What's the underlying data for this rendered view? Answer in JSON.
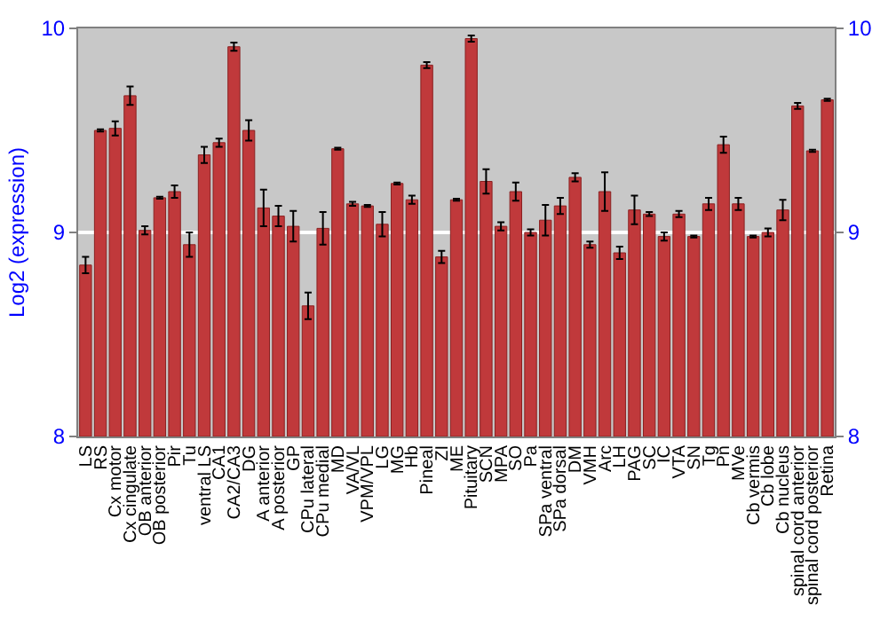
{
  "chart_data": {
    "type": "bar",
    "ylabel": "Log2 (expression)",
    "categories": [
      "LS",
      "RS",
      "Cx motor",
      "Cx cingulate",
      "OB anterior",
      "OB posterior",
      "Pir",
      "Tu",
      "ventral LS",
      "CA1",
      "CA2/CA3",
      "DG",
      "A anterior",
      "A posterior",
      "GP",
      "CPu lateral",
      "CPu medial",
      "MD",
      "VA/VL",
      "VPM/VPL",
      "LG",
      "MG",
      "Hb",
      "Pineal",
      "ZI",
      "ME",
      "Pituitary",
      "SCN",
      "MPA",
      "SO",
      "Pa",
      "SPa ventral",
      "SPa dorsal",
      "DM",
      "VMH",
      "Arc",
      "LH",
      "PAG",
      "SC",
      "IC",
      "VTA",
      "SN",
      "Tg",
      "Pn",
      "MVe",
      "Cb vermis",
      "Cb lobe",
      "Cb nucleus",
      "spinal cord anterior",
      "spinal cord posterior",
      "Retina"
    ],
    "values": [
      8.84,
      9.5,
      9.51,
      9.67,
      9.01,
      9.17,
      9.2,
      8.94,
      9.38,
      9.44,
      9.91,
      9.5,
      9.12,
      9.08,
      9.03,
      8.64,
      9.02,
      9.41,
      9.14,
      9.13,
      9.04,
      9.24,
      9.16,
      9.82,
      8.88,
      9.16,
      9.95,
      9.25,
      9.03,
      9.2,
      9.0,
      9.06,
      9.13,
      9.27,
      8.94,
      9.2,
      8.9,
      9.11,
      9.09,
      8.98,
      9.09,
      8.98,
      9.14,
      9.43,
      9.14,
      8.98,
      9.0,
      9.11,
      9.62,
      9.4,
      9.65
    ],
    "errors": [
      0.04,
      0.005,
      0.035,
      0.045,
      0.02,
      0.005,
      0.03,
      0.06,
      0.04,
      0.02,
      0.02,
      0.05,
      0.09,
      0.05,
      0.075,
      0.065,
      0.08,
      0.005,
      0.01,
      0.005,
      0.06,
      0.005,
      0.02,
      0.015,
      0.03,
      0.005,
      0.015,
      0.06,
      0.02,
      0.045,
      0.015,
      0.075,
      0.04,
      0.02,
      0.015,
      0.095,
      0.03,
      0.07,
      0.01,
      0.02,
      0.015,
      0.005,
      0.03,
      0.04,
      0.03,
      0.005,
      0.02,
      0.05,
      0.015,
      0.005,
      0.005
    ],
    "color": "#c0393b",
    "ylim": [
      8,
      10
    ],
    "yticks": [
      8,
      9,
      10
    ],
    "y2lim": [
      8,
      10
    ],
    "y2ticks": [
      8,
      9,
      10
    ],
    "grid": "y"
  }
}
